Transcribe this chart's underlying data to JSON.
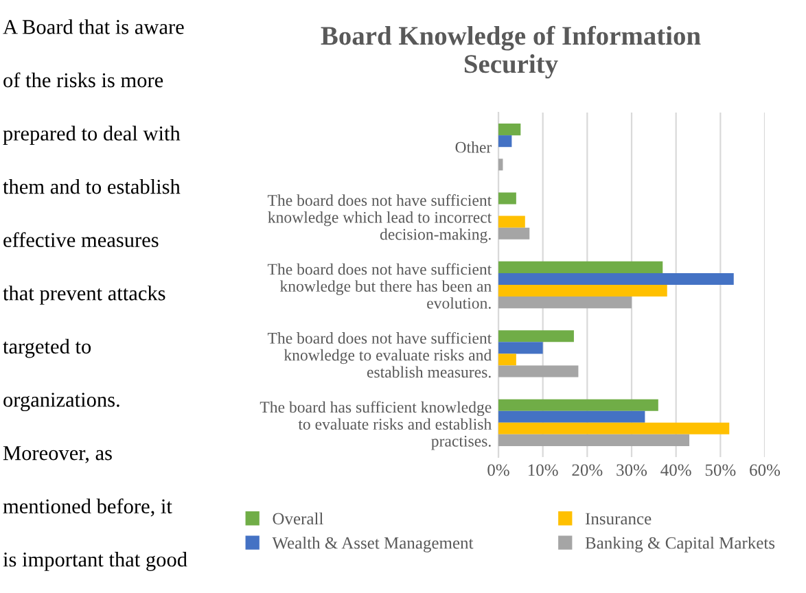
{
  "chart_data": {
    "type": "bar",
    "orientation": "horizontal",
    "title": "Board Knowledge of Information\nSecurity",
    "categories": [
      "Other",
      "The board does not have sufficient\nknowledge which lead to incorrect\ndecision-making.",
      "The board does not have sufficient\nknowledge but there has been an\nevolution.",
      "The board does not have sufficient\nknowledge to evaluate risks and\nestablish measures.",
      "The board has sufficient knowledge\nto evaluate risks and establish\npractises."
    ],
    "series": [
      {
        "name": "Overall",
        "color": "#70ad47",
        "values": [
          5,
          4,
          37,
          17,
          36
        ]
      },
      {
        "name": "Wealth & Asset Management",
        "color": "#4472c4",
        "values": [
          3,
          0,
          53,
          10,
          33
        ]
      },
      {
        "name": "Insurance",
        "color": "#ffc000",
        "values": [
          0,
          6,
          38,
          4,
          52
        ]
      },
      {
        "name": "Banking & Capital Markets",
        "color": "#a5a5a5",
        "values": [
          1,
          7,
          30,
          18,
          43
        ]
      }
    ],
    "xlim": [
      0,
      60
    ],
    "xticks": [
      {
        "value": 0,
        "label": "0%"
      },
      {
        "value": 10,
        "label": "10%"
      },
      {
        "value": 20,
        "label": "20%"
      },
      {
        "value": 30,
        "label": "30%"
      },
      {
        "value": 40,
        "label": "40%"
      },
      {
        "value": 50,
        "label": "50%"
      },
      {
        "value": 60,
        "label": "60%"
      }
    ],
    "grid": "x",
    "legend": "bottom",
    "annotations": [
      "A Board that is aware",
      "of the risks is more",
      "prepared to deal with",
      "them and to establish",
      "effective measures",
      "that prevent attacks",
      "targeted to",
      "organizations.",
      "Moreover, as",
      "mentioned before, it",
      "is important that good"
    ]
  }
}
